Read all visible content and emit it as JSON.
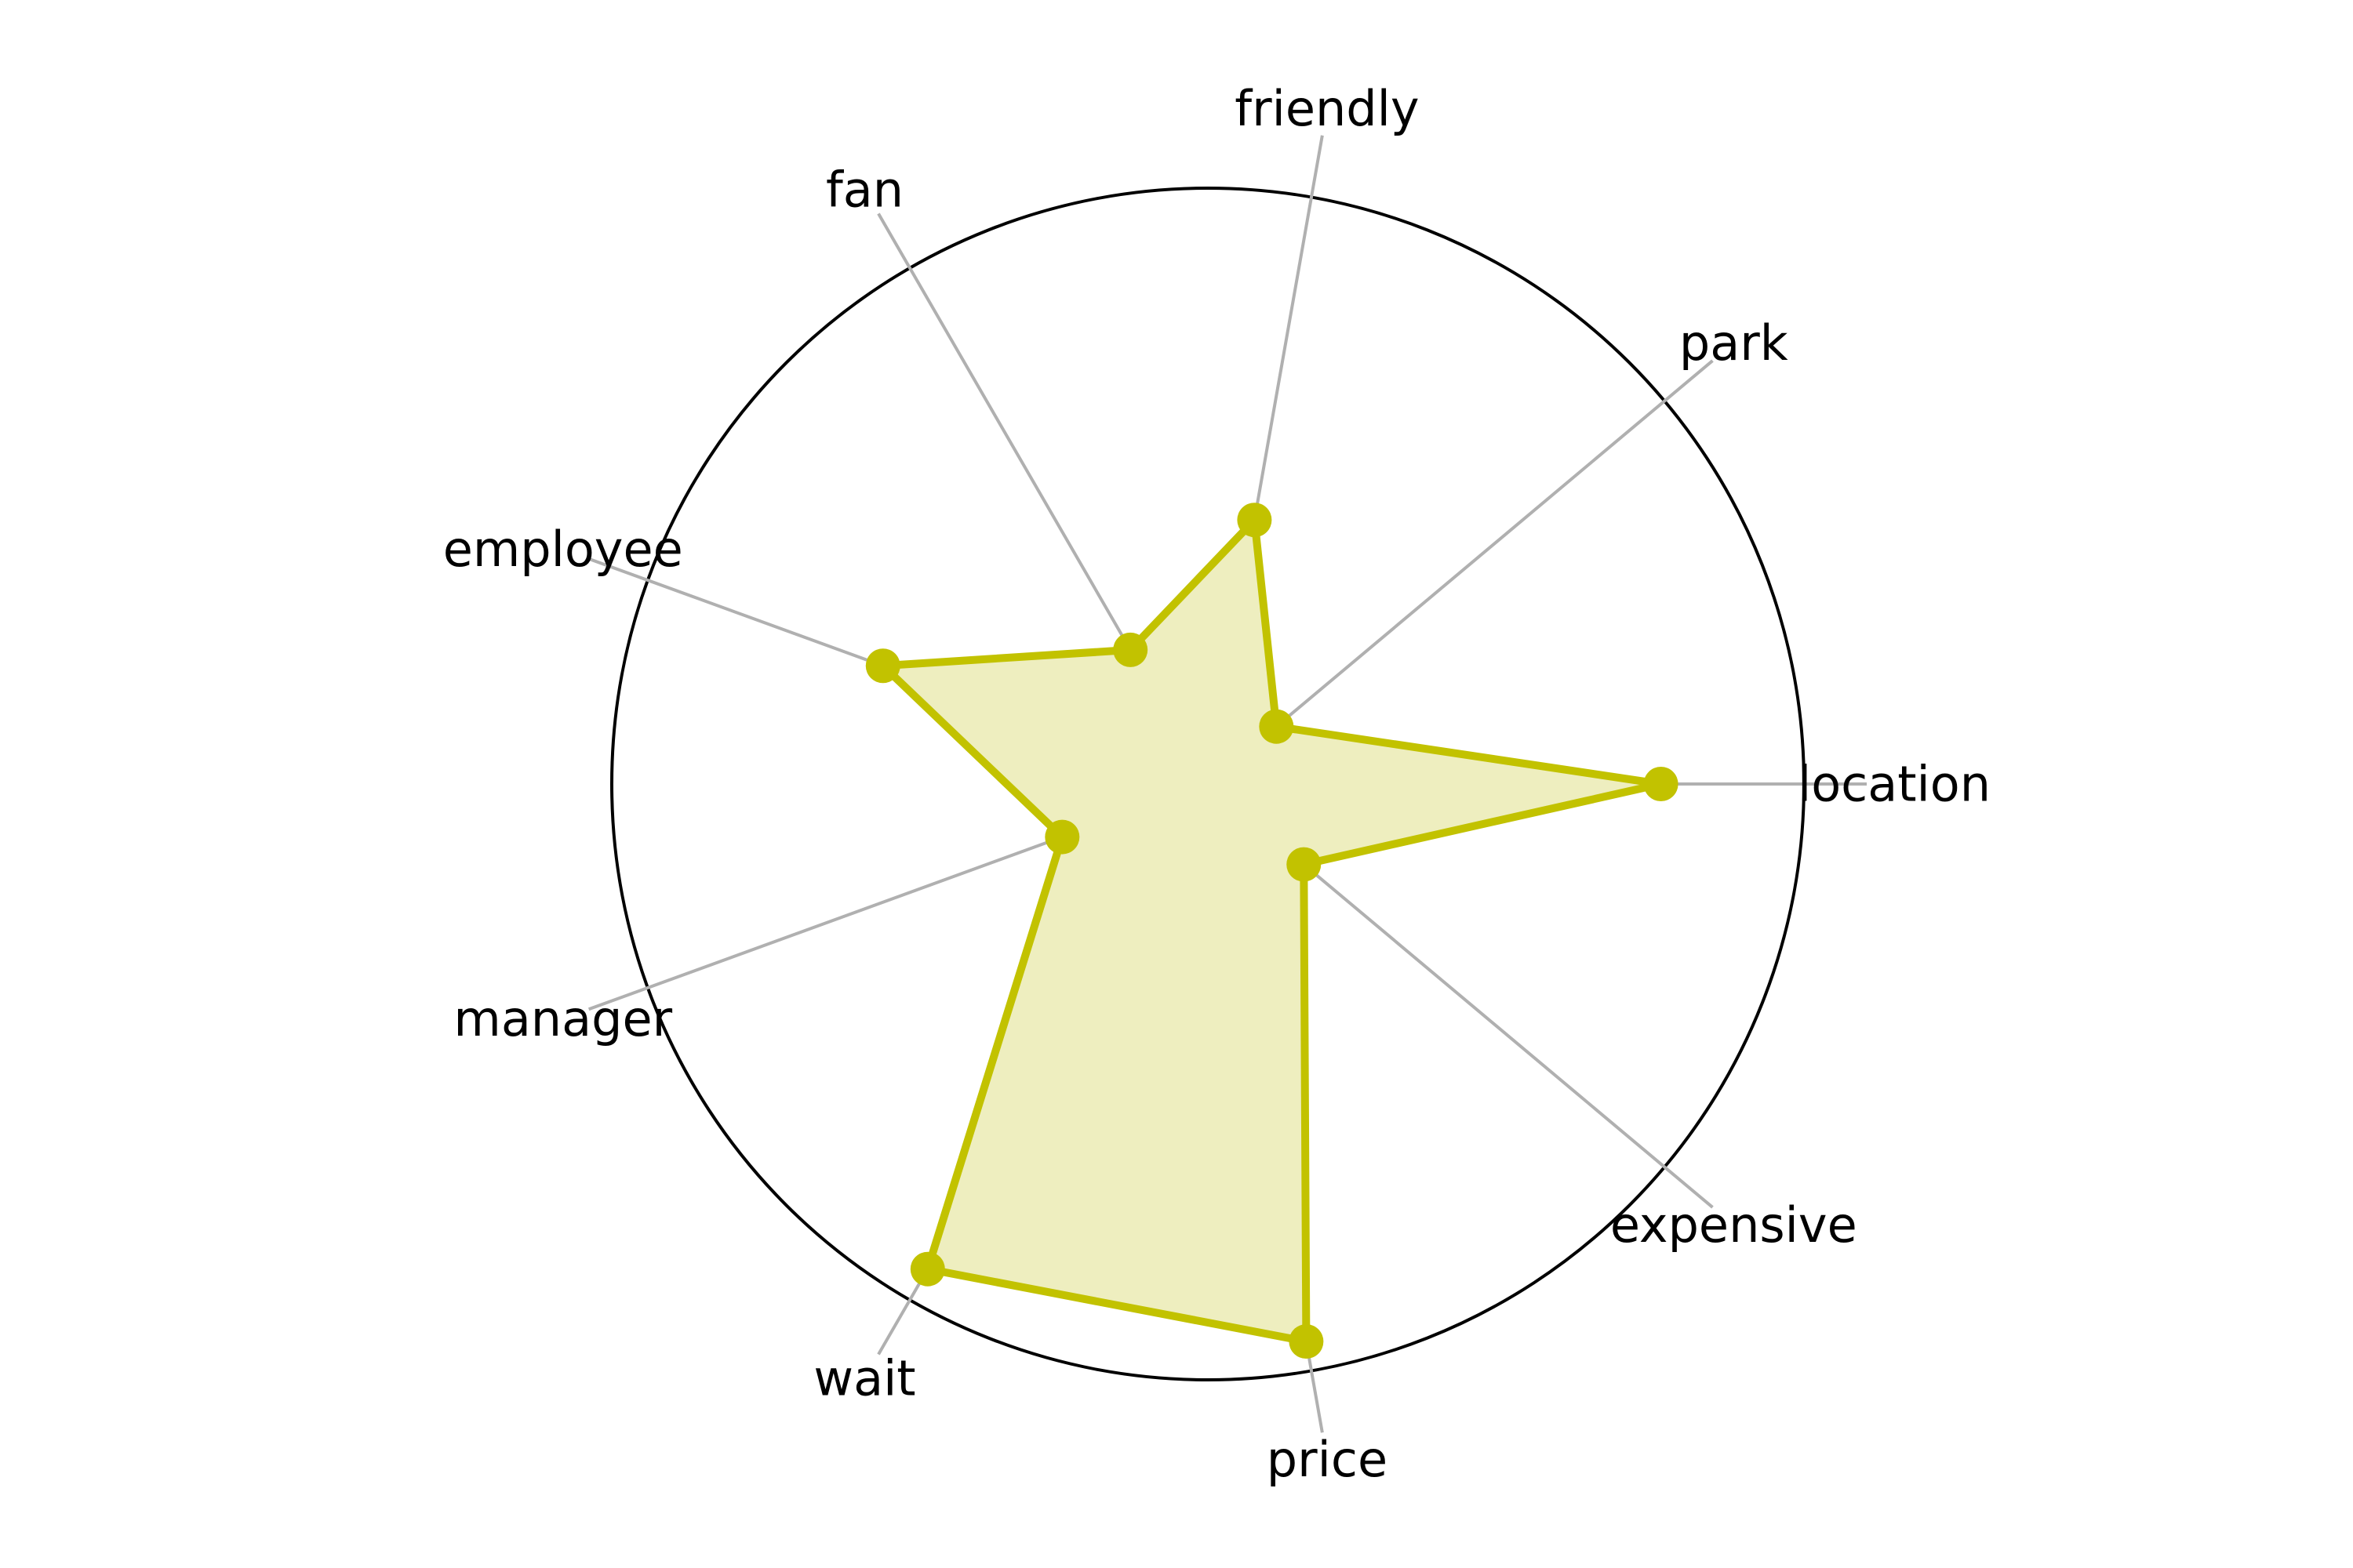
{
  "chart_data": {
    "type": "radar",
    "title": "",
    "axes": [
      "location",
      "park",
      "friendly",
      "fan",
      "employee",
      "manager",
      "wait",
      "price",
      "expensive"
    ],
    "series": [
      {
        "name": "",
        "values": [
          0.76,
          0.15,
          0.45,
          0.26,
          0.58,
          0.26,
          0.94,
          0.95,
          0.21
        ]
      }
    ],
    "range": [
      0,
      1
    ],
    "grid": "spokes-and-outer-circle",
    "legend": "none"
  },
  "colors": {
    "series_line": "#c2c200",
    "series_fill": "#eeeebf",
    "spoke": "#b0b0b0",
    "outer_circle": "#000000",
    "label": "#000000"
  }
}
